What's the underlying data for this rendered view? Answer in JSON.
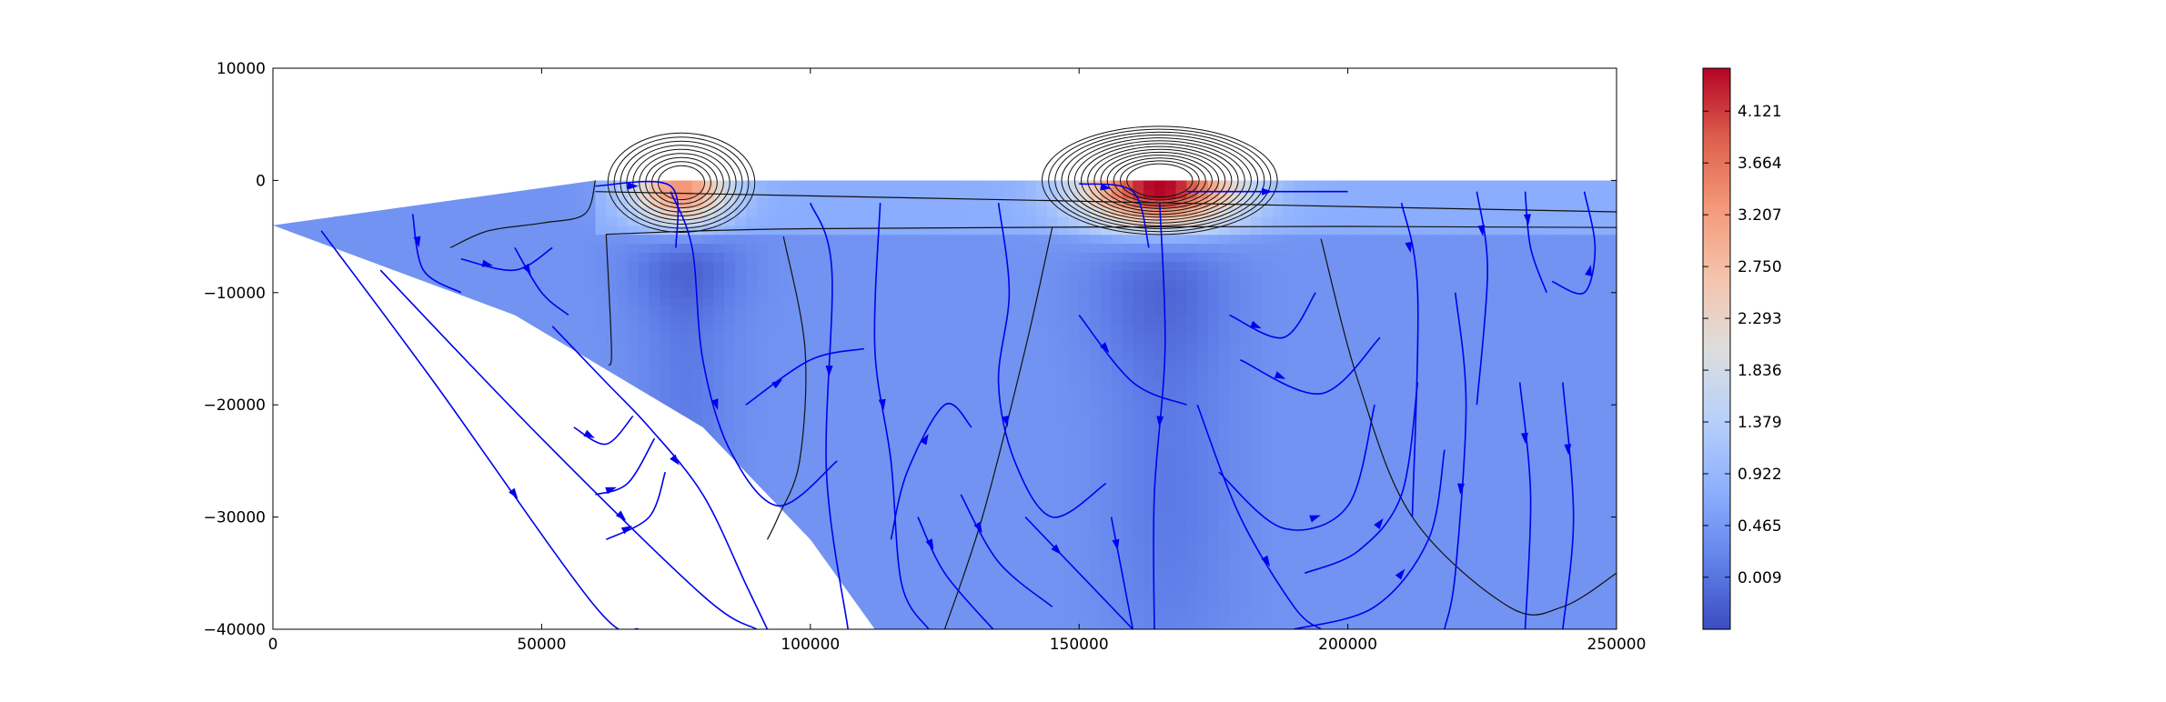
{
  "chart_data": {
    "type": "heatmap",
    "title": "",
    "xlabel": "",
    "ylabel": "",
    "xlim": [
      0,
      250000
    ],
    "ylim": [
      -40000,
      10000
    ],
    "x_ticks": [
      0,
      50000,
      100000,
      150000,
      200000,
      250000
    ],
    "x_tick_labels": [
      "0",
      "50000",
      "100000",
      "150000",
      "200000",
      "250000"
    ],
    "y_ticks": [
      10000,
      0,
      -10000,
      -20000,
      -30000,
      -40000
    ],
    "y_tick_labels": [
      "10000",
      "0",
      "−10000",
      "−20000",
      "−30000",
      "−40000"
    ],
    "grid": false,
    "colormap": "coolwarm",
    "colorbar": {
      "range": [
        -0.45,
        4.5
      ],
      "ticks": [
        0.009,
        0.465,
        0.922,
        1.379,
        1.836,
        2.293,
        2.75,
        3.207,
        3.664,
        4.121
      ],
      "tick_labels": [
        "0.009",
        "0.465",
        "0.922",
        "1.379",
        "1.836",
        "2.293",
        "2.750",
        "3.207",
        "3.664",
        "4.121"
      ]
    },
    "domain": {
      "surface_y": 0,
      "slab_top": [
        [
          0,
          -4000
        ],
        [
          60000,
          0
        ],
        [
          250000,
          0
        ]
      ],
      "slab_base": [
        [
          0,
          -4000
        ],
        [
          45000,
          -12000
        ],
        [
          80000,
          -22000
        ],
        [
          100000,
          -32000
        ],
        [
          112000,
          -40000
        ]
      ]
    },
    "background_value": 0.4,
    "warm_layer": {
      "x_range": [
        60000,
        250000
      ],
      "y_range": [
        -4500,
        0
      ],
      "value": 0.75
    },
    "warm_anomalies": [
      {
        "cx": 76000,
        "cy": -1000,
        "sx": 9000,
        "sy": 3300,
        "amp": 2.8
      },
      {
        "cx": 165000,
        "cy": -800,
        "sx": 14000,
        "sy": 3500,
        "amp": 4.0
      }
    ],
    "cold_anomalies": [
      {
        "cx": 77000,
        "cy": -7000,
        "sx": 11000,
        "sy": 5000,
        "amp": -0.45
      },
      {
        "cx": 77000,
        "cy": -18000,
        "sx": 9000,
        "sy": 14000,
        "amp": -0.3
      },
      {
        "cx": 165000,
        "cy": -9000,
        "sx": 13000,
        "sy": 8000,
        "amp": -0.45
      },
      {
        "cx": 167000,
        "cy": -28000,
        "sx": 12000,
        "sy": 18000,
        "amp": -0.32
      }
    ],
    "black_contours": [
      [
        [
          33000,
          -6000
        ],
        [
          40000,
          -4500
        ],
        [
          50000,
          -3800
        ],
        [
          58000,
          -3000
        ],
        [
          60000,
          0
        ]
      ],
      [
        [
          62000,
          -4800
        ],
        [
          100000,
          -4300
        ],
        [
          200000,
          -4100
        ],
        [
          250000,
          -4200
        ]
      ],
      [
        [
          62000,
          -4800
        ],
        [
          63000,
          -15000
        ],
        [
          62500,
          -16500
        ]
      ],
      [
        [
          95000,
          -5000
        ],
        [
          99000,
          -15000
        ],
        [
          98000,
          -25000
        ],
        [
          94000,
          -30000
        ],
        [
          92000,
          -32000
        ]
      ],
      [
        [
          145000,
          -4200
        ],
        [
          140000,
          -15000
        ],
        [
          132000,
          -30000
        ],
        [
          125000,
          -40000
        ]
      ],
      [
        [
          195000,
          -5200
        ],
        [
          202000,
          -18000
        ],
        [
          212000,
          -30000
        ],
        [
          230000,
          -38000
        ],
        [
          240000,
          -38000
        ],
        [
          250000,
          -35000
        ]
      ],
      [
        [
          60000,
          -1000
        ],
        [
          250000,
          -2800
        ]
      ]
    ],
    "streamlines": [
      [
        [
          9000,
          -4500
        ],
        [
          30000,
          -18000
        ],
        [
          60000,
          -38000
        ],
        [
          68000,
          -40000
        ]
      ],
      [
        [
          20000,
          -8000
        ],
        [
          50000,
          -23000
        ],
        [
          80000,
          -37000
        ],
        [
          90000,
          -40000
        ]
      ],
      [
        [
          26000,
          -3000
        ],
        [
          28000,
          -8000
        ],
        [
          35000,
          -10000
        ]
      ],
      [
        [
          35000,
          -7000
        ],
        [
          45000,
          -8000
        ],
        [
          52000,
          -6000
        ]
      ],
      [
        [
          45000,
          -6000
        ],
        [
          50000,
          -10000
        ],
        [
          55000,
          -12000
        ]
      ],
      [
        [
          52000,
          -13000
        ],
        [
          62000,
          -18000
        ],
        [
          70000,
          -22000
        ],
        [
          80000,
          -28000
        ],
        [
          88000,
          -36000
        ],
        [
          92000,
          -40000
        ]
      ],
      [
        [
          56000,
          -22000
        ],
        [
          62000,
          -23500
        ],
        [
          67000,
          -21000
        ]
      ],
      [
        [
          60000,
          -28000
        ],
        [
          66000,
          -27000
        ],
        [
          71000,
          -23000
        ]
      ],
      [
        [
          62000,
          -32000
        ],
        [
          70000,
          -30000
        ],
        [
          73000,
          -26000
        ]
      ],
      [
        [
          74000,
          -1000
        ],
        [
          78000,
          -6000
        ],
        [
          80000,
          -16000
        ],
        [
          85000,
          -24000
        ],
        [
          94000,
          -29000
        ],
        [
          105000,
          -25000
        ]
      ],
      [
        [
          88000,
          -20000
        ],
        [
          100000,
          -16000
        ],
        [
          110000,
          -15000
        ]
      ],
      [
        [
          100000,
          -2000
        ],
        [
          104000,
          -8000
        ],
        [
          103000,
          -26000
        ],
        [
          107000,
          -40000
        ]
      ],
      [
        [
          115000,
          -32000
        ],
        [
          118000,
          -26000
        ],
        [
          125000,
          -20000
        ],
        [
          130000,
          -22000
        ]
      ],
      [
        [
          113000,
          -2000
        ],
        [
          112000,
          -15000
        ],
        [
          115000,
          -25000
        ],
        [
          117000,
          -36000
        ],
        [
          122000,
          -40000
        ]
      ],
      [
        [
          120000,
          -30000
        ],
        [
          125000,
          -35000
        ],
        [
          134000,
          -40000
        ]
      ],
      [
        [
          128000,
          -28000
        ],
        [
          135000,
          -34000
        ],
        [
          145000,
          -38000
        ]
      ],
      [
        [
          135000,
          -2000
        ],
        [
          137000,
          -10000
        ],
        [
          135000,
          -18000
        ],
        [
          138000,
          -25000
        ],
        [
          145000,
          -30000
        ],
        [
          155000,
          -27000
        ]
      ],
      [
        [
          150000,
          -12000
        ],
        [
          160000,
          -18000
        ],
        [
          170000,
          -20000
        ]
      ],
      [
        [
          140000,
          -30000
        ],
        [
          152000,
          -36000
        ],
        [
          160000,
          -40000
        ]
      ],
      [
        [
          156000,
          -30000
        ],
        [
          158000,
          -35000
        ],
        [
          160000,
          -40000
        ]
      ],
      [
        [
          165000,
          -2000
        ],
        [
          166000,
          -15000
        ],
        [
          164000,
          -28000
        ],
        [
          164000,
          -40000
        ]
      ],
      [
        [
          172000,
          -20000
        ],
        [
          180000,
          -30000
        ],
        [
          190000,
          -38000
        ],
        [
          195000,
          -40000
        ]
      ],
      [
        [
          176000,
          -26000
        ],
        [
          188000,
          -31000
        ],
        [
          200000,
          -29000
        ],
        [
          205000,
          -20000
        ]
      ],
      [
        [
          178000,
          -12000
        ],
        [
          188000,
          -14000
        ],
        [
          194000,
          -10000
        ]
      ],
      [
        [
          180000,
          -16000
        ],
        [
          195000,
          -19000
        ],
        [
          206000,
          -14000
        ]
      ],
      [
        [
          190000,
          -40000
        ],
        [
          205000,
          -38000
        ],
        [
          215000,
          -32000
        ],
        [
          218000,
          -24000
        ]
      ],
      [
        [
          192000,
          -35000
        ],
        [
          202000,
          -33000
        ],
        [
          210000,
          -28000
        ],
        [
          213000,
          -18000
        ]
      ],
      [
        [
          210000,
          -2000
        ],
        [
          213000,
          -10000
        ],
        [
          212000,
          -30000
        ]
      ],
      [
        [
          220000,
          -10000
        ],
        [
          222000,
          -20000
        ],
        [
          220000,
          -35000
        ],
        [
          218000,
          -40000
        ]
      ],
      [
        [
          224000,
          -1000
        ],
        [
          226000,
          -8000
        ],
        [
          224000,
          -20000
        ]
      ],
      [
        [
          232000,
          -18000
        ],
        [
          234000,
          -28000
        ],
        [
          233000,
          -40000
        ]
      ],
      [
        [
          240000,
          -18000
        ],
        [
          242000,
          -30000
        ],
        [
          240000,
          -40000
        ]
      ],
      [
        [
          233000,
          -1000
        ],
        [
          234000,
          -6000
        ],
        [
          237000,
          -10000
        ]
      ],
      [
        [
          238000,
          -9000
        ],
        [
          244000,
          -10000
        ],
        [
          246000,
          -6000
        ],
        [
          244000,
          -1000
        ]
      ],
      [
        [
          60000,
          -500
        ],
        [
          74000,
          -500
        ],
        [
          75000,
          -6000
        ]
      ],
      [
        [
          170000,
          -1000
        ],
        [
          200000,
          -1000
        ]
      ],
      [
        [
          150000,
          -300
        ],
        [
          160000,
          -1000
        ],
        [
          163000,
          -6000
        ]
      ]
    ]
  }
}
